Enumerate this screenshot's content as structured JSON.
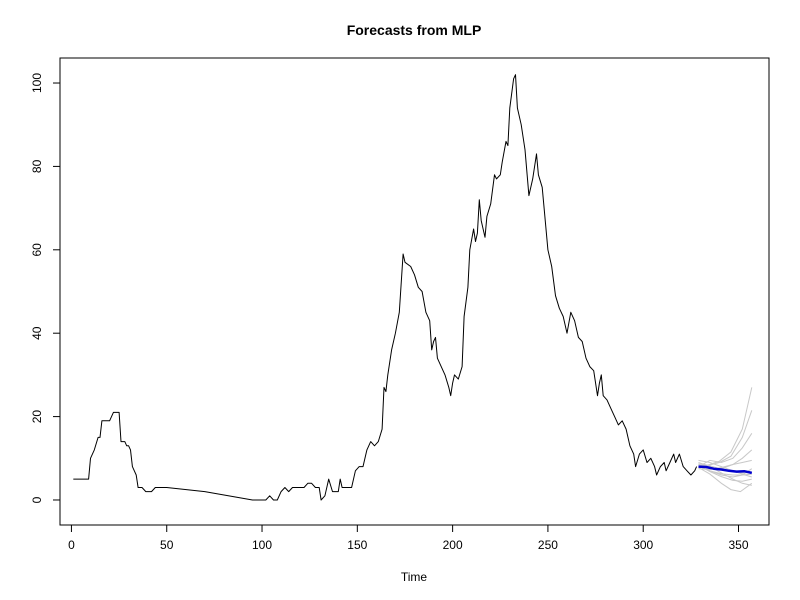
{
  "chart_data": {
    "type": "line",
    "title": "Forecasts from MLP",
    "xlabel": "Time",
    "ylabel": "",
    "xlim": [
      -6,
      366
    ],
    "ylim": [
      -6,
      106
    ],
    "grid": false,
    "x_ticks": [
      0,
      50,
      100,
      150,
      200,
      250,
      300,
      350
    ],
    "y_ticks": [
      0,
      20,
      40,
      60,
      80,
      100
    ],
    "colors": {
      "observed": "#000000",
      "forecast_mean": "#0000cd",
      "forecast_paths": "#c8c8c8"
    },
    "series": [
      {
        "role": "observed",
        "points": [
          [
            1,
            5
          ],
          [
            9,
            5
          ],
          [
            10,
            10
          ],
          [
            12,
            12
          ],
          [
            14,
            15
          ],
          [
            15,
            15
          ],
          [
            16,
            19
          ],
          [
            20,
            19
          ],
          [
            22,
            21
          ],
          [
            25,
            21
          ],
          [
            26,
            14
          ],
          [
            28,
            14
          ],
          [
            29,
            13
          ],
          [
            30,
            13
          ],
          [
            31,
            12
          ],
          [
            32,
            8
          ],
          [
            34,
            6
          ],
          [
            35,
            3
          ],
          [
            37,
            3
          ],
          [
            39,
            2
          ],
          [
            42,
            2
          ],
          [
            44,
            3
          ],
          [
            50,
            3
          ],
          [
            70,
            2
          ],
          [
            95,
            0
          ],
          [
            102,
            0
          ],
          [
            104,
            1
          ],
          [
            106,
            0
          ],
          [
            108,
            0
          ],
          [
            110,
            2
          ],
          [
            112,
            3
          ],
          [
            114,
            2
          ],
          [
            116,
            3
          ],
          [
            122,
            3
          ],
          [
            124,
            4
          ],
          [
            126,
            4
          ],
          [
            128,
            3
          ],
          [
            130,
            3
          ],
          [
            131,
            0
          ],
          [
            133,
            1
          ],
          [
            135,
            5
          ],
          [
            137,
            2
          ],
          [
            140,
            2
          ],
          [
            141,
            5
          ],
          [
            142,
            3
          ],
          [
            147,
            3
          ],
          [
            149,
            7
          ],
          [
            151,
            8
          ],
          [
            153,
            8
          ],
          [
            155,
            12
          ],
          [
            157,
            14
          ],
          [
            159,
            13
          ],
          [
            161,
            14
          ],
          [
            163,
            17
          ],
          [
            164,
            27
          ],
          [
            165,
            26
          ],
          [
            166,
            30
          ],
          [
            168,
            36
          ],
          [
            170,
            40
          ],
          [
            172,
            45
          ],
          [
            174,
            59
          ],
          [
            175,
            57
          ],
          [
            178,
            56
          ],
          [
            180,
            54
          ],
          [
            182,
            51
          ],
          [
            184,
            50
          ],
          [
            186,
            45
          ],
          [
            188,
            43
          ],
          [
            189,
            36
          ],
          [
            190,
            38
          ],
          [
            191,
            39
          ],
          [
            192,
            34
          ],
          [
            194,
            32
          ],
          [
            196,
            30
          ],
          [
            198,
            27
          ],
          [
            199,
            25
          ],
          [
            200,
            28
          ],
          [
            201,
            30
          ],
          [
            203,
            29
          ],
          [
            205,
            32
          ],
          [
            206,
            44
          ],
          [
            208,
            51
          ],
          [
            209,
            60
          ],
          [
            211,
            65
          ],
          [
            212,
            62
          ],
          [
            213,
            64
          ],
          [
            214,
            72
          ],
          [
            215,
            67
          ],
          [
            217,
            63
          ],
          [
            218,
            68
          ],
          [
            220,
            71
          ],
          [
            222,
            78
          ],
          [
            223,
            77
          ],
          [
            225,
            78
          ],
          [
            226,
            81
          ],
          [
            228,
            86
          ],
          [
            229,
            85
          ],
          [
            230,
            94
          ],
          [
            232,
            101
          ],
          [
            233,
            102
          ],
          [
            234,
            94
          ],
          [
            236,
            90
          ],
          [
            238,
            84
          ],
          [
            240,
            73
          ],
          [
            242,
            77
          ],
          [
            244,
            83
          ],
          [
            245,
            78
          ],
          [
            247,
            75
          ],
          [
            248,
            70
          ],
          [
            250,
            60
          ],
          [
            252,
            56
          ],
          [
            254,
            49
          ],
          [
            256,
            46
          ],
          [
            258,
            44
          ],
          [
            260,
            40
          ],
          [
            262,
            45
          ],
          [
            264,
            43
          ],
          [
            266,
            39
          ],
          [
            268,
            38
          ],
          [
            270,
            34
          ],
          [
            272,
            32
          ],
          [
            274,
            31
          ],
          [
            276,
            25
          ],
          [
            277,
            28
          ],
          [
            278,
            30
          ],
          [
            279,
            25
          ],
          [
            281,
            24
          ],
          [
            283,
            22
          ],
          [
            285,
            20
          ],
          [
            287,
            18
          ],
          [
            289,
            19
          ],
          [
            291,
            17
          ],
          [
            293,
            13
          ],
          [
            295,
            11
          ],
          [
            296,
            8
          ],
          [
            298,
            11
          ],
          [
            300,
            12
          ],
          [
            302,
            9
          ],
          [
            304,
            10
          ],
          [
            306,
            8
          ],
          [
            307,
            6
          ],
          [
            309,
            8
          ],
          [
            311,
            9
          ],
          [
            312,
            7
          ],
          [
            314,
            9
          ],
          [
            316,
            11
          ],
          [
            317,
            9
          ],
          [
            319,
            11
          ],
          [
            321,
            8
          ],
          [
            323,
            7
          ],
          [
            325,
            6
          ],
          [
            327,
            7
          ],
          [
            328,
            8
          ]
        ]
      },
      {
        "role": "forecast_mean",
        "points": [
          [
            329,
            8.0
          ],
          [
            333,
            7.9
          ],
          [
            337,
            7.5
          ],
          [
            341,
            7.3
          ],
          [
            345,
            7.0
          ],
          [
            349,
            6.8
          ],
          [
            353,
            6.9
          ],
          [
            357,
            6.5
          ]
        ]
      }
    ],
    "forecast_paths": [
      [
        [
          329,
          8.5
        ],
        [
          334,
          8.3
        ],
        [
          340,
          9.0
        ],
        [
          346,
          10.5
        ],
        [
          352,
          15.0
        ],
        [
          357,
          21.5
        ]
      ],
      [
        [
          329,
          8.0
        ],
        [
          334,
          8.4
        ],
        [
          340,
          9.3
        ],
        [
          346,
          11.5
        ],
        [
          352,
          17.0
        ],
        [
          357,
          27.0
        ]
      ],
      [
        [
          329,
          8.2
        ],
        [
          335,
          7.0
        ],
        [
          341,
          6.0
        ],
        [
          347,
          5.5
        ],
        [
          352,
          6.0
        ],
        [
          357,
          7.5
        ]
      ],
      [
        [
          329,
          7.8
        ],
        [
          335,
          6.2
        ],
        [
          341,
          4.0
        ],
        [
          346,
          2.5
        ],
        [
          351,
          2.0
        ],
        [
          357,
          4.0
        ]
      ],
      [
        [
          329,
          9.0
        ],
        [
          335,
          8.0
        ],
        [
          341,
          6.5
        ],
        [
          347,
          5.0
        ],
        [
          352,
          4.0
        ],
        [
          357,
          3.5
        ]
      ],
      [
        [
          329,
          8.6
        ],
        [
          335,
          7.5
        ],
        [
          341,
          7.5
        ],
        [
          347,
          8.5
        ],
        [
          352,
          10.0
        ],
        [
          357,
          12.0
        ]
      ],
      [
        [
          329,
          8.0
        ],
        [
          335,
          9.5
        ],
        [
          341,
          9.0
        ],
        [
          347,
          10.0
        ],
        [
          352,
          12.5
        ],
        [
          357,
          16.0
        ]
      ],
      [
        [
          329,
          9.5
        ],
        [
          335,
          9.0
        ],
        [
          341,
          8.0
        ],
        [
          347,
          7.0
        ],
        [
          352,
          6.2
        ],
        [
          357,
          5.5
        ]
      ],
      [
        [
          329,
          7.5
        ],
        [
          335,
          7.3
        ],
        [
          341,
          7.8
        ],
        [
          347,
          8.5
        ],
        [
          352,
          9.0
        ],
        [
          357,
          9.5
        ]
      ],
      [
        [
          329,
          8.3
        ],
        [
          335,
          6.8
        ],
        [
          341,
          5.6
        ],
        [
          347,
          4.7
        ],
        [
          352,
          4.5
        ],
        [
          357,
          5.0
        ]
      ],
      [
        [
          329,
          8.9
        ],
        [
          335,
          8.2
        ],
        [
          341,
          7.4
        ],
        [
          347,
          6.8
        ],
        [
          352,
          6.5
        ],
        [
          357,
          6.6
        ]
      ],
      [
        [
          329,
          8.1
        ],
        [
          335,
          7.0
        ],
        [
          341,
          6.3
        ],
        [
          347,
          6.0
        ],
        [
          352,
          6.0
        ],
        [
          357,
          6.2
        ]
      ]
    ]
  }
}
